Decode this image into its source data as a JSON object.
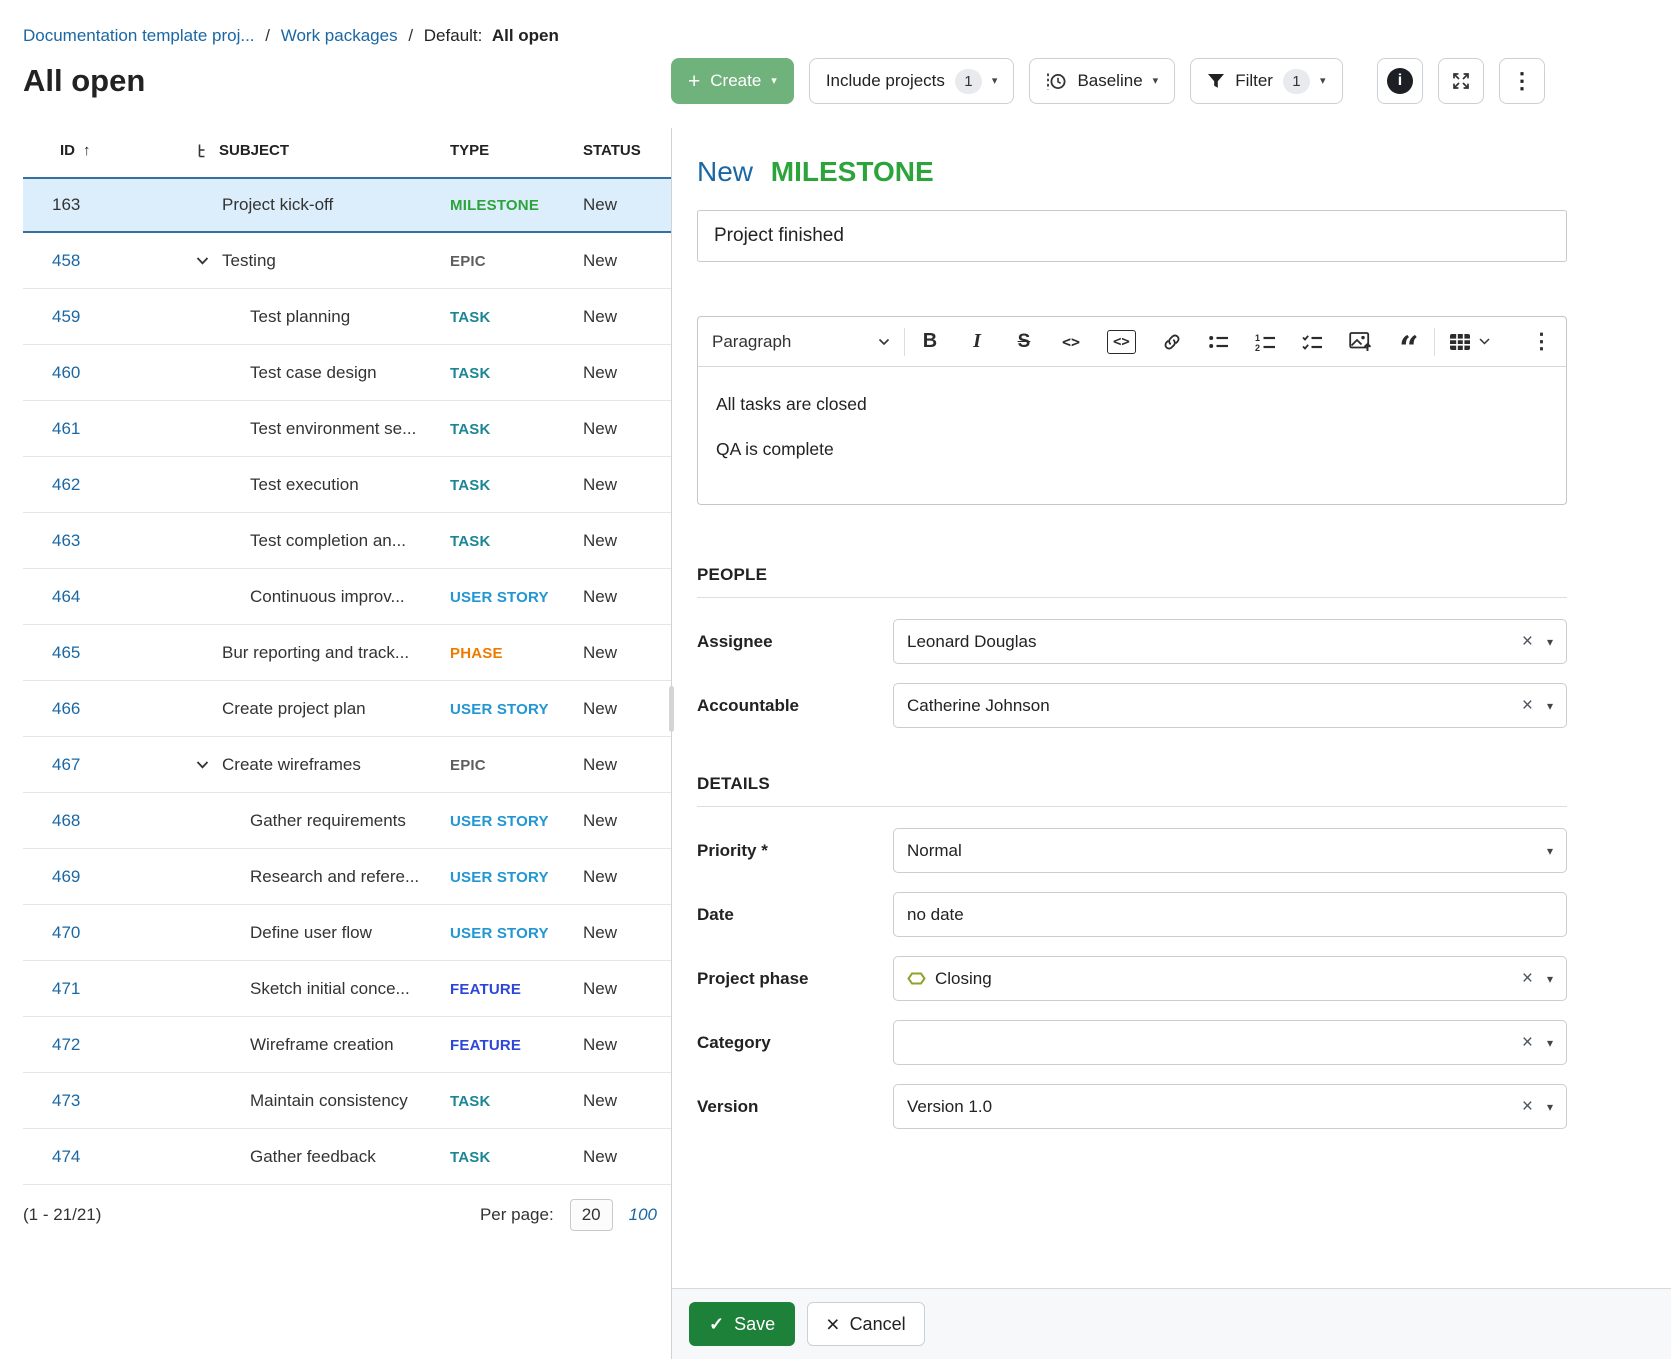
{
  "breadcrumb": {
    "project": "Documentation template proj...",
    "separator": "/",
    "work_packages": "Work packages",
    "default_prefix": "Default:",
    "current_view": "All open"
  },
  "page_title": "All open",
  "toolbar": {
    "create_label": "Create",
    "include_projects_label": "Include projects",
    "include_projects_badge": "1",
    "baseline_label": "Baseline",
    "filter_label": "Filter",
    "filter_badge": "1",
    "icon_names": [
      "plus-icon",
      "chevron-down-icon",
      "baseline-clock-icon",
      "filter-funnel-icon",
      "info-icon",
      "fullscreen-icon",
      "kebab-menu-icon"
    ]
  },
  "glyphs": {
    "plus": "+",
    "caret": "▾",
    "kebab": "⋮",
    "info": "i",
    "sort_asc": "↑",
    "clear": "×",
    "check": "✓",
    "bold": "B",
    "italic": "I",
    "strike": "S",
    "inline_code": "<>",
    "code_block": "<>",
    "quote": "“"
  },
  "ui_colors": {
    "link_blue": "#1a67a3",
    "create_button_green": "#70b27b",
    "save_button_green": "#1e8139",
    "selected_row_bg": "#dceefb",
    "selected_row_border": "#35719f"
  },
  "table": {
    "headers": {
      "id": "ID",
      "subject": "SUBJECT",
      "type": "TYPE",
      "status": "STATUS"
    },
    "type_colors": {
      "MILESTONE": "#2da33c",
      "EPIC": "#5e5e5e",
      "TASK": "#1b8695",
      "USER STORY": "#2096d2",
      "PHASE": "#ee7a00",
      "FEATURE": "#2d46d8"
    },
    "rows": [
      {
        "id": "163",
        "subject": "Project kick-off",
        "type": "MILESTONE",
        "status": "New",
        "indent": 0,
        "has_children": false,
        "selected": true,
        "id_is_link": false
      },
      {
        "id": "458",
        "subject": "Testing",
        "type": "EPIC",
        "status": "New",
        "indent": 0,
        "has_children": true,
        "selected": false,
        "id_is_link": true
      },
      {
        "id": "459",
        "subject": "Test planning",
        "type": "TASK",
        "status": "New",
        "indent": 1,
        "has_children": false,
        "selected": false,
        "id_is_link": true
      },
      {
        "id": "460",
        "subject": "Test case design",
        "type": "TASK",
        "status": "New",
        "indent": 1,
        "has_children": false,
        "selected": false,
        "id_is_link": true
      },
      {
        "id": "461",
        "subject": "Test environment se...",
        "type": "TASK",
        "status": "New",
        "indent": 1,
        "has_children": false,
        "selected": false,
        "id_is_link": true
      },
      {
        "id": "462",
        "subject": "Test execution",
        "type": "TASK",
        "status": "New",
        "indent": 1,
        "has_children": false,
        "selected": false,
        "id_is_link": true
      },
      {
        "id": "463",
        "subject": "Test completion an...",
        "type": "TASK",
        "status": "New",
        "indent": 1,
        "has_children": false,
        "selected": false,
        "id_is_link": true
      },
      {
        "id": "464",
        "subject": "Continuous improv...",
        "type": "USER STORY",
        "status": "New",
        "indent": 1,
        "has_children": false,
        "selected": false,
        "id_is_link": true
      },
      {
        "id": "465",
        "subject": "Bur reporting and track...",
        "type": "PHASE",
        "status": "New",
        "indent": 0,
        "has_children": false,
        "selected": false,
        "id_is_link": true
      },
      {
        "id": "466",
        "subject": "Create project plan",
        "type": "USER STORY",
        "status": "New",
        "indent": 0,
        "has_children": false,
        "selected": false,
        "id_is_link": true
      },
      {
        "id": "467",
        "subject": "Create wireframes",
        "type": "EPIC",
        "status": "New",
        "indent": 0,
        "has_children": true,
        "selected": false,
        "id_is_link": true
      },
      {
        "id": "468",
        "subject": "Gather requirements",
        "type": "USER STORY",
        "status": "New",
        "indent": 1,
        "has_children": false,
        "selected": false,
        "id_is_link": true
      },
      {
        "id": "469",
        "subject": "Research and refere...",
        "type": "USER STORY",
        "status": "New",
        "indent": 1,
        "has_children": false,
        "selected": false,
        "id_is_link": true
      },
      {
        "id": "470",
        "subject": "Define user flow",
        "type": "USER STORY",
        "status": "New",
        "indent": 1,
        "has_children": false,
        "selected": false,
        "id_is_link": true
      },
      {
        "id": "471",
        "subject": "Sketch initial conce...",
        "type": "FEATURE",
        "status": "New",
        "indent": 1,
        "has_children": false,
        "selected": false,
        "id_is_link": true
      },
      {
        "id": "472",
        "subject": "Wireframe creation",
        "type": "FEATURE",
        "status": "New",
        "indent": 1,
        "has_children": false,
        "selected": false,
        "id_is_link": true
      },
      {
        "id": "473",
        "subject": "Maintain consistency",
        "type": "TASK",
        "status": "New",
        "indent": 1,
        "has_children": false,
        "selected": false,
        "id_is_link": true
      },
      {
        "id": "474",
        "subject": "Gather feedback",
        "type": "TASK",
        "status": "New",
        "indent": 1,
        "has_children": false,
        "selected": false,
        "id_is_link": true
      }
    ]
  },
  "pagination": {
    "range_label": "(1 - 21/21)",
    "per_page_label": "Per page:",
    "selected_per_page": "20",
    "other_per_page": "100"
  },
  "panel": {
    "title_prefix": "New",
    "title_type": "MILESTONE",
    "title_type_color": "#2da33c",
    "subject_value": "Project finished",
    "editor": {
      "paragraph_label": "Paragraph",
      "toolbar_icon_names": [
        "paragraph-dropdown",
        "bold-icon",
        "italic-icon",
        "strikethrough-icon",
        "inline-code-icon",
        "code-block-icon",
        "link-icon",
        "bulleted-list-icon",
        "numbered-list-icon",
        "todo-list-icon",
        "image-upload-icon",
        "block-quote-icon",
        "insert-table-icon",
        "editor-more-icon"
      ],
      "description_paragraphs": [
        "All tasks are closed",
        "QA is complete"
      ]
    },
    "people_section_label": "PEOPLE",
    "details_section_label": "DETAILS",
    "people_fields": [
      {
        "label": "Assignee",
        "value": "Leonard Douglas",
        "clearable": true,
        "caret": true,
        "icon": null
      },
      {
        "label": "Accountable",
        "value": "Catherine Johnson",
        "clearable": true,
        "caret": true,
        "icon": null
      }
    ],
    "details_fields": [
      {
        "label": "Priority *",
        "value": "Normal",
        "clearable": false,
        "caret": true,
        "icon": null
      },
      {
        "label": "Date",
        "value": "no date",
        "clearable": false,
        "caret": false,
        "icon": null
      },
      {
        "label": "Project phase",
        "value": "Closing",
        "clearable": true,
        "caret": true,
        "icon": "phase-icon"
      },
      {
        "label": "Category",
        "value": "",
        "clearable": true,
        "caret": true,
        "icon": null
      },
      {
        "label": "Version",
        "value": "Version 1.0",
        "clearable": true,
        "caret": true,
        "icon": null
      }
    ],
    "actions": {
      "save_label": "Save",
      "cancel_label": "Cancel"
    }
  }
}
